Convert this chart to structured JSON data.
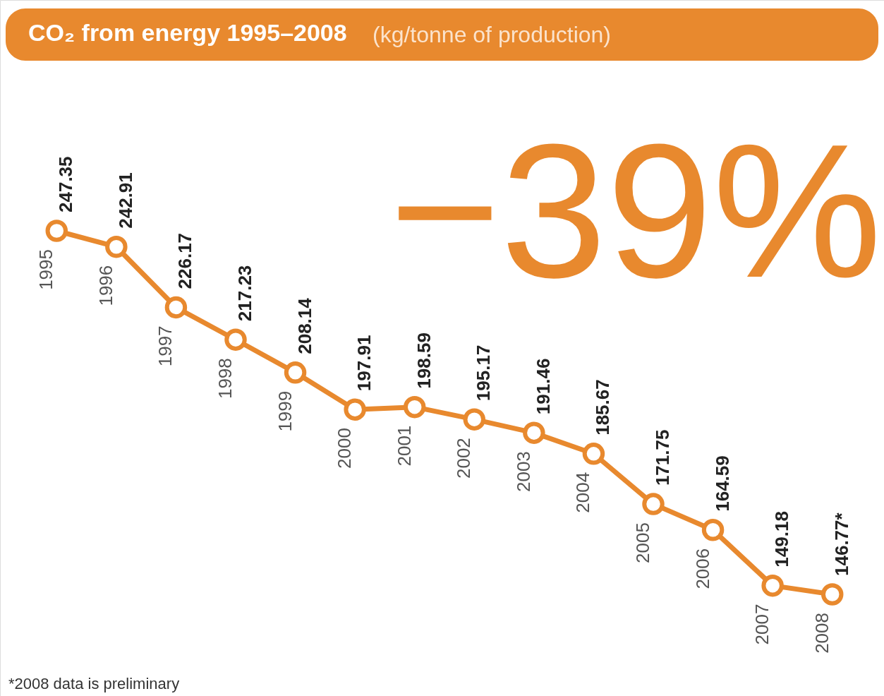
{
  "chart_data": {
    "type": "line",
    "title": "CO₂ from energy 1995–2008",
    "subtitle": "(kg/tonne of production)",
    "categories": [
      "1995",
      "1996",
      "1997",
      "1998",
      "1999",
      "2000",
      "2001",
      "2002",
      "2003",
      "2004",
      "2005",
      "2006",
      "2007",
      "2008"
    ],
    "series": [
      {
        "color": "#e8892e",
        "values": [
          247.35,
          242.91,
          226.17,
          217.23,
          208.14,
          197.91,
          198.59,
          195.17,
          191.46,
          185.67,
          171.75,
          164.59,
          149.18,
          146.77
        ],
        "value_labels": [
          "247.35",
          "242.91",
          "226.17",
          "217.23",
          "208.14",
          "197.91",
          "198.59",
          "195.17",
          "191.46",
          "185.67",
          "171.75",
          "164.59",
          "149.18",
          "146.77*"
        ]
      }
    ],
    "marker": "circle",
    "line_style": "solid",
    "annotations": [
      "−39%",
      "*2008 data is preliminary"
    ]
  }
}
